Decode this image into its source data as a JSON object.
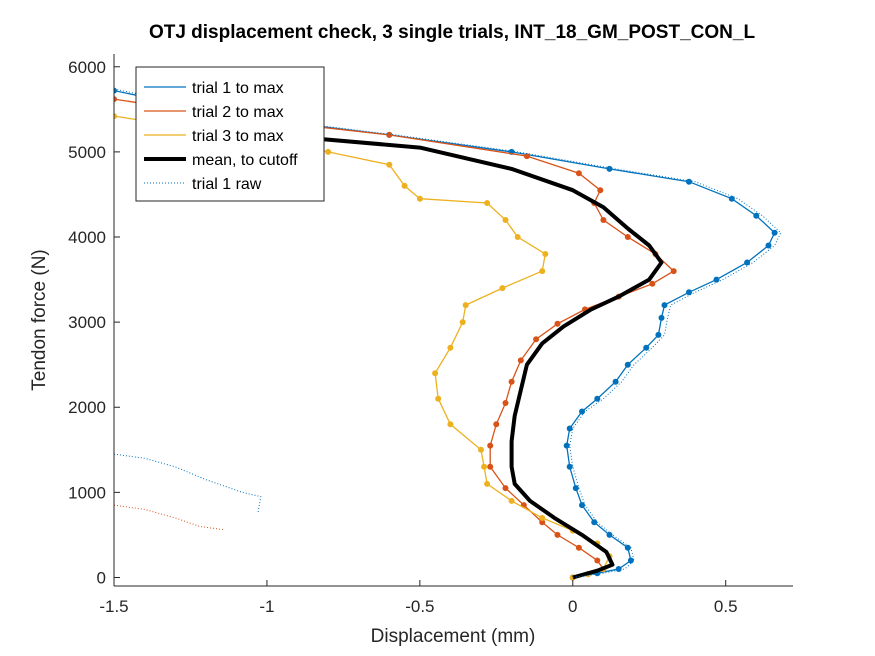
{
  "chart_data": {
    "type": "line",
    "title": "OTJ displacement check, 3 single trials, INT_18_GM_POST_CON_L",
    "xlabel": "Displacement (mm)",
    "ylabel": "Tendon force (N)",
    "xlim": [
      -1.5,
      0.72
    ],
    "ylim": [
      -100,
      6150
    ],
    "xticks": [
      -1.5,
      -1,
      -0.5,
      0,
      0.5
    ],
    "xtick_labels": [
      "-1.5",
      "-1",
      "-0.5",
      "0",
      "0.5"
    ],
    "yticks": [
      0,
      1000,
      2000,
      3000,
      4000,
      5000,
      6000
    ],
    "ytick_labels": [
      "0",
      "1000",
      "2000",
      "3000",
      "4000",
      "5000",
      "6000"
    ],
    "grid": false,
    "legend_position": "top-left",
    "series": [
      {
        "name": "trial 1 to max",
        "color": "#0072BD",
        "style": "line-markers",
        "points": [
          [
            0,
            0
          ],
          [
            0.08,
            50
          ],
          [
            0.15,
            100
          ],
          [
            0.19,
            200
          ],
          [
            0.18,
            350
          ],
          [
            0.12,
            500
          ],
          [
            0.07,
            650
          ],
          [
            0.03,
            850
          ],
          [
            0.01,
            1050
          ],
          [
            -0.01,
            1300
          ],
          [
            -0.02,
            1550
          ],
          [
            -0.01,
            1750
          ],
          [
            0.03,
            1950
          ],
          [
            0.08,
            2100
          ],
          [
            0.14,
            2300
          ],
          [
            0.18,
            2500
          ],
          [
            0.24,
            2700
          ],
          [
            0.28,
            2850
          ],
          [
            0.29,
            3050
          ],
          [
            0.3,
            3200
          ],
          [
            0.38,
            3350
          ],
          [
            0.47,
            3500
          ],
          [
            0.57,
            3700
          ],
          [
            0.64,
            3900
          ],
          [
            0.66,
            4050
          ],
          [
            0.6,
            4250
          ],
          [
            0.52,
            4450
          ],
          [
            0.38,
            4650
          ],
          [
            0.12,
            4800
          ],
          [
            -0.2,
            5000
          ],
          [
            -0.6,
            5200
          ],
          [
            -1.1,
            5420
          ],
          [
            -1.5,
            5720
          ]
        ]
      },
      {
        "name": "trial 2 to max",
        "color": "#D95319",
        "style": "line-markers",
        "points": [
          [
            0,
            0
          ],
          [
            0.05,
            40
          ],
          [
            0.1,
            100
          ],
          [
            0.08,
            200
          ],
          [
            0.02,
            350
          ],
          [
            -0.05,
            500
          ],
          [
            -0.1,
            650
          ],
          [
            -0.16,
            850
          ],
          [
            -0.22,
            1050
          ],
          [
            -0.27,
            1300
          ],
          [
            -0.27,
            1550
          ],
          [
            -0.25,
            1800
          ],
          [
            -0.22,
            2050
          ],
          [
            -0.2,
            2300
          ],
          [
            -0.17,
            2550
          ],
          [
            -0.12,
            2800
          ],
          [
            -0.05,
            2980
          ],
          [
            0.04,
            3150
          ],
          [
            0.15,
            3300
          ],
          [
            0.26,
            3450
          ],
          [
            0.33,
            3600
          ],
          [
            0.27,
            3800
          ],
          [
            0.18,
            4000
          ],
          [
            0.1,
            4200
          ],
          [
            0.07,
            4400
          ],
          [
            0.09,
            4550
          ],
          [
            0.02,
            4750
          ],
          [
            -0.15,
            4950
          ],
          [
            -0.6,
            5200
          ],
          [
            -1.1,
            5400
          ],
          [
            -1.5,
            5620
          ]
        ]
      },
      {
        "name": "trial 3 to max",
        "color": "#EDB120",
        "style": "line-markers",
        "points": [
          [
            0,
            0
          ],
          [
            0.05,
            40
          ],
          [
            0.1,
            100
          ],
          [
            0.12,
            250
          ],
          [
            0.08,
            400
          ],
          [
            0,
            550
          ],
          [
            -0.1,
            700
          ],
          [
            -0.2,
            900
          ],
          [
            -0.28,
            1100
          ],
          [
            -0.29,
            1300
          ],
          [
            -0.3,
            1500
          ],
          [
            -0.4,
            1800
          ],
          [
            -0.44,
            2100
          ],
          [
            -0.45,
            2400
          ],
          [
            -0.4,
            2700
          ],
          [
            -0.36,
            3000
          ],
          [
            -0.35,
            3200
          ],
          [
            -0.23,
            3400
          ],
          [
            -0.1,
            3600
          ],
          [
            -0.09,
            3800
          ],
          [
            -0.18,
            4000
          ],
          [
            -0.22,
            4200
          ],
          [
            -0.28,
            4400
          ],
          [
            -0.5,
            4450
          ],
          [
            -0.55,
            4600
          ],
          [
            -0.6,
            4850
          ],
          [
            -0.8,
            5000
          ],
          [
            -1.1,
            5200
          ],
          [
            -1.5,
            5420
          ]
        ]
      },
      {
        "name": "mean, to cutoff",
        "color": "#000000",
        "style": "thick-line",
        "points": [
          [
            0,
            0
          ],
          [
            0.08,
            80
          ],
          [
            0.13,
            150
          ],
          [
            0.11,
            300
          ],
          [
            0.03,
            500
          ],
          [
            -0.06,
            700
          ],
          [
            -0.14,
            900
          ],
          [
            -0.19,
            1100
          ],
          [
            -0.2,
            1300
          ],
          [
            -0.2,
            1600
          ],
          [
            -0.19,
            1900
          ],
          [
            -0.17,
            2200
          ],
          [
            -0.15,
            2500
          ],
          [
            -0.1,
            2750
          ],
          [
            -0.03,
            2950
          ],
          [
            0.06,
            3150
          ],
          [
            0.15,
            3300
          ],
          [
            0.25,
            3500
          ],
          [
            0.29,
            3700
          ],
          [
            0.25,
            3900
          ],
          [
            0.18,
            4100
          ],
          [
            0.1,
            4350
          ],
          [
            0,
            4550
          ],
          [
            -0.2,
            4800
          ],
          [
            -0.5,
            5050
          ],
          [
            -0.82,
            5150
          ]
        ]
      },
      {
        "name": "trial 1 raw",
        "color": "#0072BD",
        "style": "dotted",
        "points": [
          [
            0,
            0
          ],
          [
            0.1,
            50
          ],
          [
            0.17,
            100
          ],
          [
            0.2,
            200
          ],
          [
            0.19,
            350
          ],
          [
            0.13,
            500
          ],
          [
            0.08,
            650
          ],
          [
            0.04,
            850
          ],
          [
            0.02,
            1050
          ],
          [
            0,
            1300
          ],
          [
            -0.01,
            1550
          ],
          [
            0,
            1750
          ],
          [
            0.04,
            1950
          ],
          [
            0.1,
            2100
          ],
          [
            0.16,
            2300
          ],
          [
            0.2,
            2500
          ],
          [
            0.26,
            2700
          ],
          [
            0.3,
            2850
          ],
          [
            0.31,
            3050
          ],
          [
            0.32,
            3200
          ],
          [
            0.4,
            3350
          ],
          [
            0.49,
            3500
          ],
          [
            0.59,
            3700
          ],
          [
            0.66,
            3900
          ],
          [
            0.68,
            4050
          ],
          [
            0.62,
            4250
          ],
          [
            0.54,
            4450
          ],
          [
            0.4,
            4650
          ],
          [
            0.14,
            4800
          ],
          [
            -0.18,
            5000
          ],
          [
            -0.58,
            5200
          ],
          [
            -1.08,
            5420
          ],
          [
            -1.5,
            5740
          ]
        ]
      },
      {
        "name": "",
        "color": "#0072BD",
        "style": "dotted",
        "points": [
          [
            -1.5,
            1450
          ],
          [
            -1.4,
            1400
          ],
          [
            -1.3,
            1300
          ],
          [
            -1.2,
            1150
          ],
          [
            -1.08,
            1000
          ],
          [
            -1.02,
            950
          ],
          [
            -1.03,
            750
          ]
        ]
      },
      {
        "name": "",
        "color": "#D95319",
        "style": "dotted",
        "points": [
          [
            -1.5,
            850
          ],
          [
            -1.4,
            800
          ],
          [
            -1.3,
            700
          ],
          [
            -1.22,
            600
          ],
          [
            -1.14,
            560
          ]
        ]
      }
    ]
  }
}
